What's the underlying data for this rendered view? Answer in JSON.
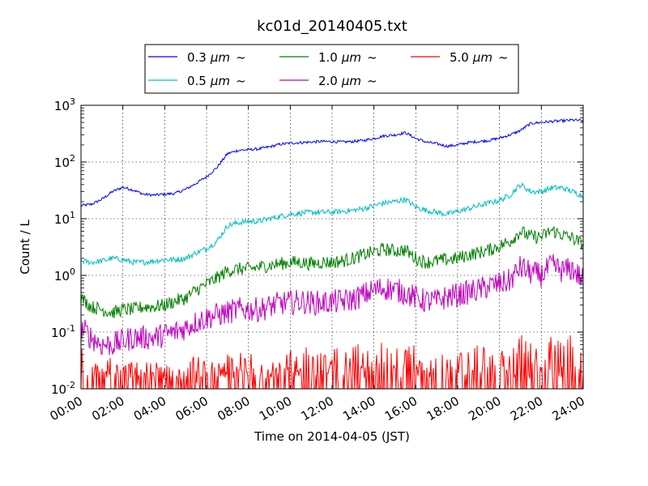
{
  "chart_data": {
    "type": "line",
    "title": "kc01d_20140405.txt",
    "xlabel": "Time on 2014-04-05 (JST)",
    "ylabel": "Count / L",
    "yscale": "log",
    "ylim": [
      0.01,
      1000
    ],
    "xlim": [
      "00:00",
      "24:00"
    ],
    "grid": true,
    "legend_position": "top-center",
    "x_ticks": [
      "00:00",
      "02:00",
      "04:00",
      "06:00",
      "08:00",
      "10:00",
      "12:00",
      "14:00",
      "16:00",
      "18:00",
      "20:00",
      "22:00",
      "24:00"
    ],
    "y_ticks": [
      {
        "base": "10",
        "exp": "-2"
      },
      {
        "base": "10",
        "exp": "-1"
      },
      {
        "base": "10",
        "exp": "0"
      },
      {
        "base": "10",
        "exp": "1"
      },
      {
        "base": "10",
        "exp": "2"
      },
      {
        "base": "10",
        "exp": "3"
      }
    ],
    "x_hours": [
      0,
      0.5,
      1,
      1.5,
      2,
      2.5,
      3,
      3.5,
      4,
      4.5,
      5,
      5.5,
      6,
      6.5,
      7,
      7.5,
      8,
      8.5,
      9,
      9.5,
      10,
      10.5,
      11,
      11.5,
      12,
      12.5,
      13,
      13.5,
      14,
      14.5,
      15,
      15.5,
      16,
      16.5,
      17,
      17.5,
      18,
      18.5,
      19,
      19.5,
      20,
      20.5,
      21,
      21.5,
      22,
      22.5,
      23,
      23.5,
      24
    ],
    "series": [
      {
        "name": "0.3",
        "unit": "μm",
        "suffix": "~",
        "color": "#0000ff",
        "noise": 0.025,
        "values": [
          17,
          18,
          22,
          30,
          36,
          32,
          27,
          26,
          27,
          28,
          33,
          42,
          55,
          80,
          140,
          160,
          165,
          170,
          185,
          205,
          215,
          220,
          225,
          230,
          230,
          225,
          230,
          240,
          260,
          290,
          300,
          330,
          260,
          225,
          210,
          190,
          200,
          220,
          230,
          240,
          265,
          300,
          360,
          480,
          500,
          520,
          530,
          550,
          530
        ]
      },
      {
        "name": "0.5",
        "unit": "μm",
        "suffix": "~",
        "color": "#00bfbf",
        "noise": 0.05,
        "values": [
          1.8,
          1.7,
          1.8,
          2.0,
          1.9,
          1.7,
          1.7,
          1.8,
          1.9,
          1.9,
          2.0,
          2.5,
          3.0,
          4.0,
          7.5,
          8.5,
          9.0,
          9.0,
          10,
          11,
          12,
          12.5,
          13,
          13,
          13,
          13.5,
          14,
          15,
          17,
          19,
          20,
          22,
          16,
          14,
          13,
          12,
          13.5,
          15,
          17,
          19,
          21,
          26,
          40,
          30,
          30,
          35,
          35,
          30,
          25
        ]
      },
      {
        "name": "1.0",
        "unit": "μm",
        "suffix": "~",
        "color": "#008000",
        "noise": 0.12,
        "values": [
          0.4,
          0.28,
          0.25,
          0.22,
          0.25,
          0.25,
          0.28,
          0.28,
          0.3,
          0.35,
          0.4,
          0.55,
          0.7,
          0.9,
          1.2,
          1.3,
          1.3,
          1.4,
          1.5,
          1.6,
          1.7,
          1.7,
          1.6,
          1.7,
          1.7,
          1.8,
          2.0,
          2.3,
          2.6,
          2.9,
          2.7,
          2.8,
          2.0,
          1.7,
          1.8,
          1.9,
          2.0,
          2.3,
          2.5,
          2.8,
          3.3,
          4.0,
          6.0,
          4.8,
          4.8,
          6.2,
          5.2,
          4.5,
          3.5
        ]
      },
      {
        "name": "2.0",
        "unit": "μm",
        "suffix": "~",
        "color": "#bf00bf",
        "noise": 0.22,
        "values": [
          0.12,
          0.08,
          0.06,
          0.06,
          0.07,
          0.08,
          0.08,
          0.08,
          0.09,
          0.1,
          0.12,
          0.15,
          0.18,
          0.2,
          0.22,
          0.25,
          0.25,
          0.25,
          0.28,
          0.32,
          0.33,
          0.35,
          0.33,
          0.33,
          0.34,
          0.35,
          0.38,
          0.45,
          0.55,
          0.6,
          0.55,
          0.5,
          0.4,
          0.35,
          0.35,
          0.42,
          0.45,
          0.5,
          0.55,
          0.65,
          0.7,
          0.8,
          1.4,
          1.1,
          1.0,
          1.5,
          1.2,
          1.3,
          0.8
        ]
      },
      {
        "name": "5.0",
        "unit": "μm",
        "suffix": "~",
        "color": "#ff0000",
        "noise": 0,
        "sparse": true,
        "values": [
          0.03,
          0.015,
          0.015,
          0.02,
          0.015,
          0.015,
          0.015,
          0.015,
          0.015,
          0.015,
          0.015,
          0.02,
          0.015,
          0.015,
          0.02,
          0.03,
          0.03,
          0.025,
          0.03,
          0.03,
          0.025,
          0.03,
          0.03,
          0.03,
          0.025,
          0.03,
          0.03,
          0.035,
          0.04,
          0.03,
          0.03,
          0.03,
          0.03,
          0.025,
          0.025,
          0.03,
          0.025,
          0.025,
          0.03,
          0.03,
          0.03,
          0.03,
          0.05,
          0.04,
          0.03,
          0.05,
          0.04,
          0.045,
          0.03
        ]
      }
    ]
  }
}
